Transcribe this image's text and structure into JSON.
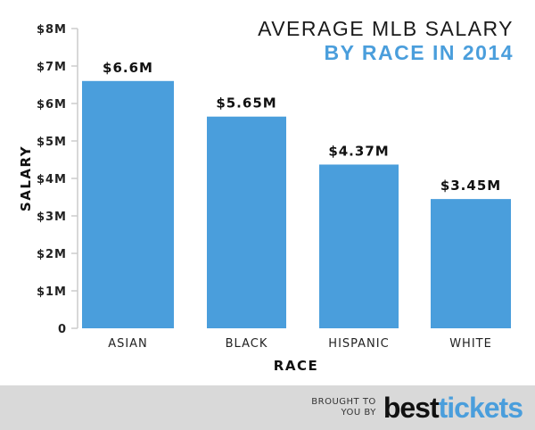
{
  "chart_data": {
    "type": "bar",
    "title": "AVERAGE MLB SALARY",
    "subtitle": "BY RACE IN 2014",
    "xlabel": "RACE",
    "ylabel": "SALARY",
    "categories": [
      "ASIAN",
      "BLACK",
      "HISPANIC",
      "WHITE"
    ],
    "values": [
      6.6,
      5.65,
      4.37,
      3.45
    ],
    "data_labels": [
      "$6.6M",
      "$5.65M",
      "$4.37M",
      "$3.45M"
    ],
    "ylim": [
      0,
      8
    ],
    "yticks": [
      0,
      1,
      2,
      3,
      4,
      5,
      6,
      7,
      8
    ],
    "ytick_labels": [
      "0",
      "$1M",
      "$2M",
      "$3M",
      "$4M",
      "$5M",
      "$6M",
      "$7M",
      "$8M"
    ],
    "grid": false,
    "bar_color": "#4a9edc"
  },
  "footer": {
    "brought_line1": "BROUGHT TO",
    "brought_line2": "YOU BY",
    "logo_part1": "best",
    "logo_part2": "tickets"
  }
}
